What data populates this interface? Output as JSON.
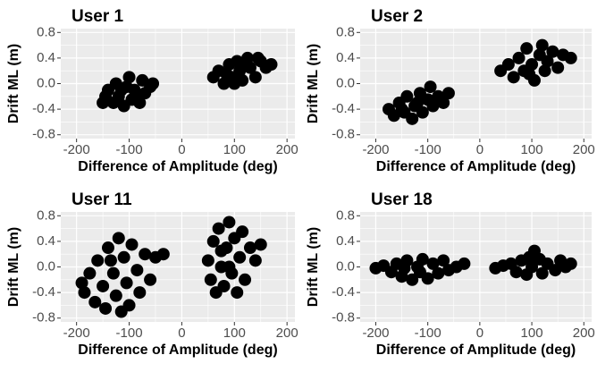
{
  "chart_data": [
    {
      "type": "scatter",
      "title": "User 1",
      "xlabel": "Difference of Amplitude (deg)",
      "ylabel": "Drift ML (m)",
      "color": "#000000",
      "grid": true,
      "xlim": [
        -230,
        215
      ],
      "ylim": [
        -0.86,
        0.86
      ],
      "xticks": [
        -200,
        -100,
        0,
        100,
        200
      ],
      "yticks": [
        -0.8,
        -0.4,
        {
          "value": 0,
          "label": "0.0"
        },
        0.4,
        0.8
      ],
      "x": [
        -150,
        -140,
        -130,
        -125,
        -120,
        -110,
        -105,
        -100,
        -95,
        -90,
        -80,
        -75,
        -70,
        -60,
        -145,
        -115,
        -85,
        -55,
        60,
        70,
        80,
        90,
        95,
        105,
        110,
        115,
        125,
        130,
        140,
        150,
        160,
        170,
        100,
        120,
        145,
        85
      ],
      "values": [
        -0.3,
        -0.1,
        -0.3,
        0.0,
        -0.2,
        -0.35,
        -0.05,
        0.1,
        -0.25,
        -0.1,
        -0.3,
        0.05,
        -0.15,
        -0.05,
        -0.2,
        -0.1,
        -0.2,
        0.0,
        0.1,
        0.2,
        0.0,
        0.3,
        0.1,
        0.35,
        0.2,
        0.05,
        0.4,
        0.25,
        0.1,
        0.35,
        0.25,
        0.3,
        0.0,
        0.3,
        0.4,
        0.15
      ]
    },
    {
      "type": "scatter",
      "title": "User 2",
      "xlabel": "Difference of Amplitude (deg)",
      "ylabel": "Drift ML (m)",
      "color": "#000000",
      "grid": true,
      "xlim": [
        -230,
        215
      ],
      "ylim": [
        -0.86,
        0.86
      ],
      "xticks": [
        -200,
        -100,
        0,
        100,
        200
      ],
      "yticks": [
        -0.8,
        -0.4,
        {
          "value": 0,
          "label": "0.0"
        },
        0.4,
        0.8
      ],
      "x": [
        -175,
        -165,
        -155,
        -145,
        -140,
        -130,
        -125,
        -115,
        -110,
        -100,
        -95,
        -90,
        -80,
        -70,
        -60,
        -150,
        -120,
        40,
        55,
        65,
        75,
        85,
        90,
        100,
        105,
        115,
        120,
        130,
        140,
        150,
        160,
        175,
        95,
        125
      ],
      "values": [
        -0.4,
        -0.5,
        -0.3,
        -0.45,
        -0.2,
        -0.55,
        -0.35,
        -0.15,
        -0.45,
        -0.25,
        -0.05,
        -0.35,
        -0.2,
        -0.3,
        -0.15,
        -0.4,
        -0.3,
        0.2,
        0.3,
        0.1,
        0.4,
        0.2,
        0.55,
        0.3,
        0.05,
        0.45,
        0.6,
        0.35,
        0.5,
        0.25,
        0.45,
        0.4,
        0.15,
        0.2
      ]
    },
    {
      "type": "scatter",
      "title": "User 11",
      "xlabel": "Difference of Amplitude (deg)",
      "ylabel": "Drift ML (m)",
      "color": "#000000",
      "grid": true,
      "xlim": [
        -230,
        215
      ],
      "ylim": [
        -0.86,
        0.86
      ],
      "xticks": [
        -200,
        -100,
        0,
        100,
        200
      ],
      "yticks": [
        -0.8,
        -0.4,
        {
          "value": 0,
          "label": "0.0"
        },
        0.4,
        0.8
      ],
      "x": [
        -190,
        -185,
        -175,
        -165,
        -160,
        -150,
        -145,
        -140,
        -130,
        -125,
        -120,
        -110,
        -105,
        -100,
        -95,
        -85,
        -80,
        -70,
        -60,
        -50,
        -35,
        -115,
        -135,
        50,
        55,
        60,
        65,
        70,
        75,
        80,
        85,
        90,
        95,
        100,
        105,
        110,
        115,
        120,
        130,
        140,
        150,
        90,
        75
      ],
      "values": [
        -0.25,
        -0.4,
        -0.1,
        -0.55,
        0.1,
        -0.3,
        -0.65,
        0.3,
        -0.1,
        -0.45,
        0.45,
        0.15,
        -0.25,
        -0.6,
        0.35,
        -0.05,
        -0.4,
        0.2,
        -0.2,
        0.15,
        0.2,
        -0.7,
        0.1,
        0.1,
        -0.2,
        0.4,
        -0.4,
        0.6,
        0.0,
        -0.3,
        0.3,
        0.7,
        -0.1,
        0.45,
        -0.4,
        0.15,
        0.55,
        -0.2,
        0.3,
        0.1,
        0.35,
        0.0,
        0.25
      ]
    },
    {
      "type": "scatter",
      "title": "User 18",
      "xlabel": "Difference of Amplitude (deg)",
      "ylabel": "Drift ML (m)",
      "color": "#000000",
      "grid": true,
      "xlim": [
        -230,
        215
      ],
      "ylim": [
        -0.86,
        0.86
      ],
      "xticks": [
        -200,
        -100,
        0,
        100,
        200
      ],
      "yticks": [
        -0.8,
        -0.4,
        {
          "value": 0,
          "label": "0.0"
        },
        0.4,
        0.8
      ],
      "x": [
        -200,
        -185,
        -170,
        -160,
        -150,
        -140,
        -130,
        -120,
        -110,
        -100,
        -90,
        -80,
        -70,
        -60,
        -45,
        -30,
        -115,
        -145,
        30,
        45,
        60,
        70,
        80,
        90,
        100,
        105,
        115,
        120,
        130,
        145,
        155,
        165,
        175,
        95
      ],
      "values": [
        -0.02,
        0.02,
        -0.08,
        0.05,
        -0.15,
        0.1,
        -0.2,
        0.0,
        0.12,
        -0.18,
        0.05,
        -0.1,
        0.1,
        -0.05,
        0.0,
        0.05,
        -0.08,
        -0.02,
        -0.02,
        0.02,
        0.05,
        -0.08,
        0.1,
        -0.12,
        0.0,
        0.25,
        0.12,
        -0.1,
        0.05,
        -0.05,
        0.1,
        0.0,
        0.05,
        0.15
      ]
    }
  ]
}
